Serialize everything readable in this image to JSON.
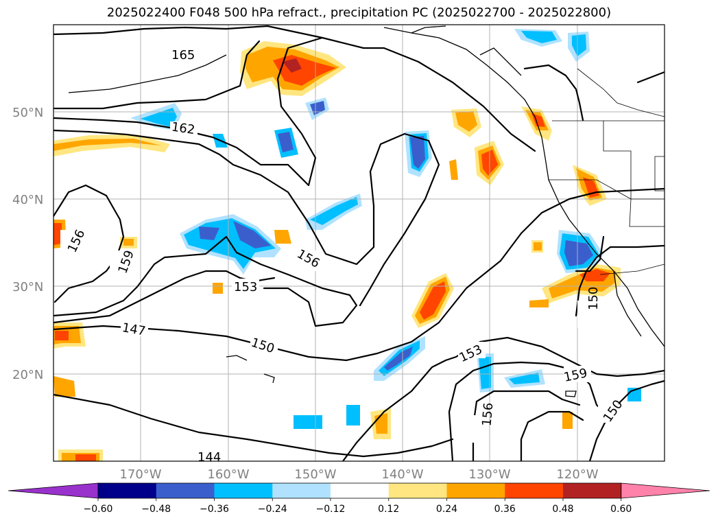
{
  "title": "2025022400 F048 500 hPa refract., precipitation PC (2025022700 - 2025022800)",
  "lat_labels": [
    "50°N",
    "40°N",
    "30°N",
    "20°N"
  ],
  "lon_labels": [
    "170°W",
    "160°W",
    "150°W",
    "140°W",
    "130°W",
    "120°W"
  ],
  "contour_labels": [
    "165",
    "162",
    "159",
    "156",
    "156",
    "153",
    "147",
    "150",
    "144",
    "153",
    "159",
    "156",
    "150",
    "150"
  ],
  "colorbar": {
    "ticks": [
      "−0.60",
      "−0.48",
      "−0.36",
      "−0.24",
      "−0.12",
      "0.12",
      "0.24",
      "0.36",
      "0.48",
      "0.60"
    ],
    "colors": [
      "#9932cc",
      "#00008b",
      "#3a5fcd",
      "#00bfff",
      "#b0e2ff",
      "#ffffff",
      "#ffe680",
      "#ffa500",
      "#ff4500",
      "#b22222",
      "#ff82ab"
    ]
  }
}
